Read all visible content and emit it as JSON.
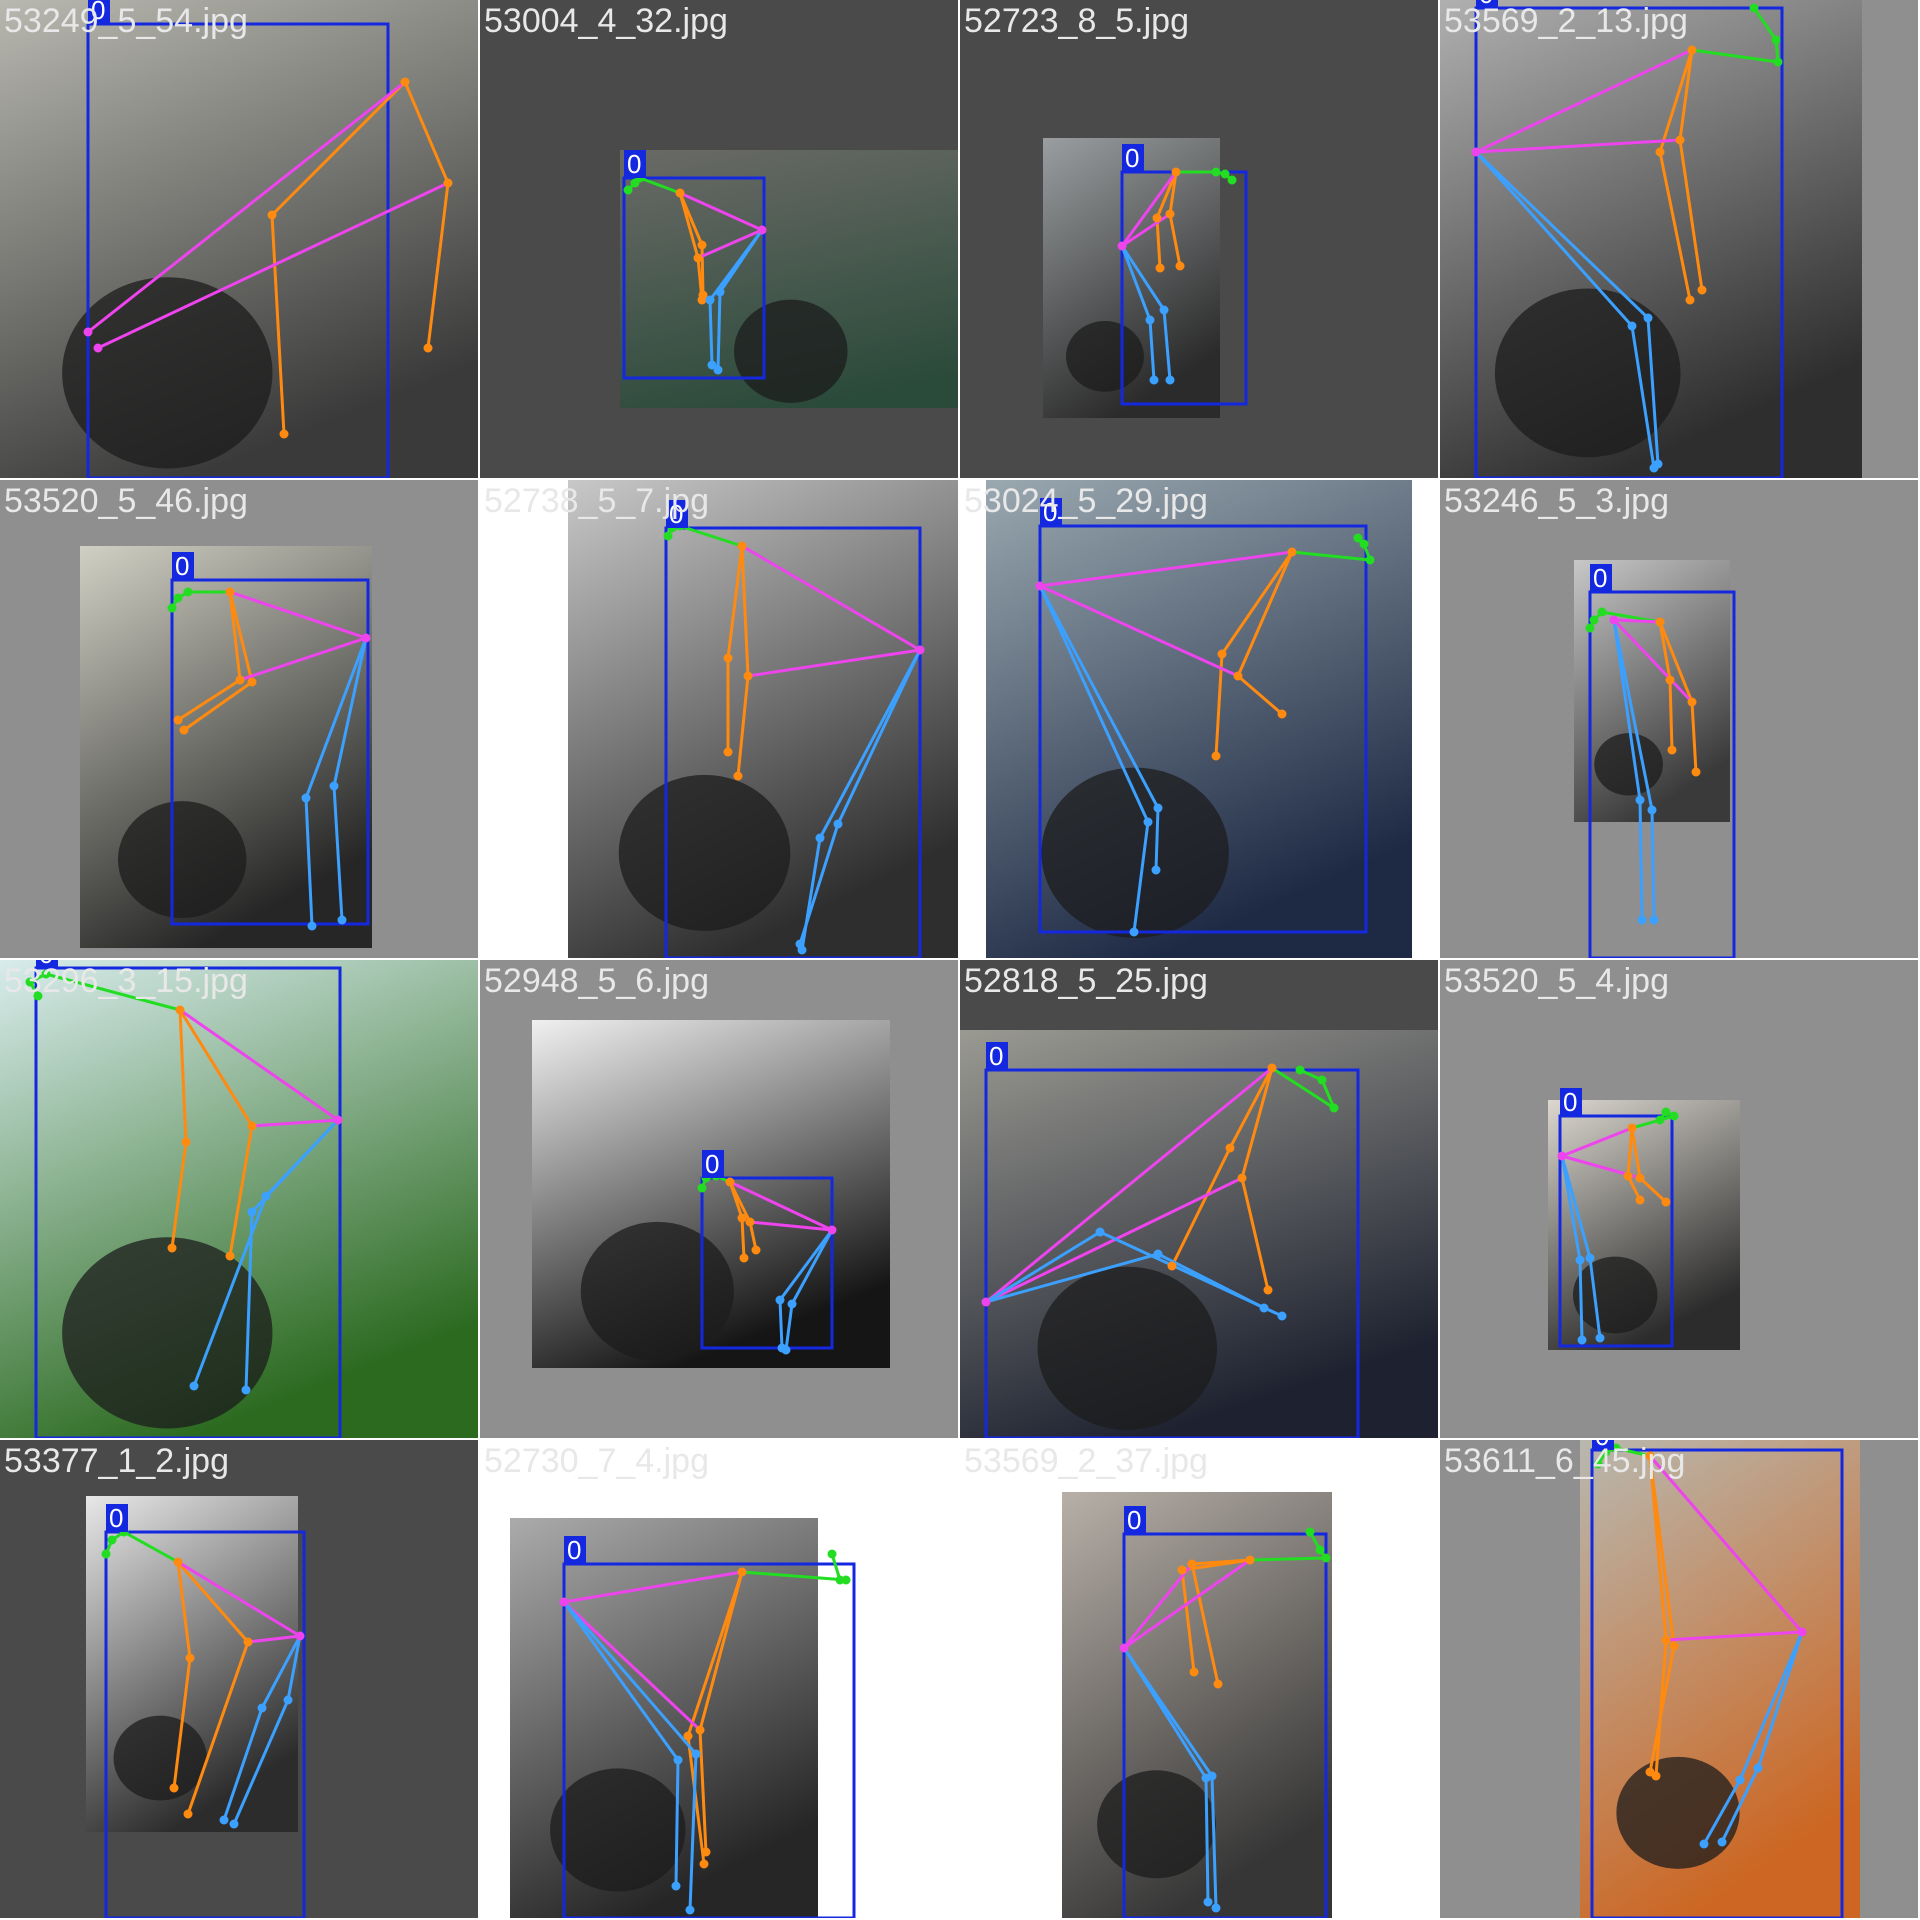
{
  "title": "",
  "class_label": "0",
  "colors": {
    "box": "#1428e0",
    "head": "#22dd22",
    "arm": "#ff8a10",
    "torso": "#ee44ee",
    "leg": "#3ca0ff",
    "pad_dark": "#4a4a4a",
    "pad_light": "#8f8f8f"
  },
  "tiles": [
    {
      "file": "53249_5_54.jpg"
    },
    {
      "file": "53004_4_32.jpg"
    },
    {
      "file": "52723_8_5.jpg"
    },
    {
      "file": "53569_2_13.jpg"
    },
    {
      "file": "53520_5_46.jpg"
    },
    {
      "file": "52738_5_7.jpg"
    },
    {
      "file": "53024_5_29.jpg"
    },
    {
      "file": "53246_5_3.jpg"
    },
    {
      "file": "53296_3_15.jpg"
    },
    {
      "file": "52948_5_6.jpg"
    },
    {
      "file": "52818_5_25.jpg"
    },
    {
      "file": "53520_5_4.jpg"
    },
    {
      "file": "53377_1_2.jpg"
    },
    {
      "file": "52730_7_4.jpg"
    },
    {
      "file": "53569_2_37.jpg"
    },
    {
      "file": "53611_6_45.jpg"
    }
  ]
}
